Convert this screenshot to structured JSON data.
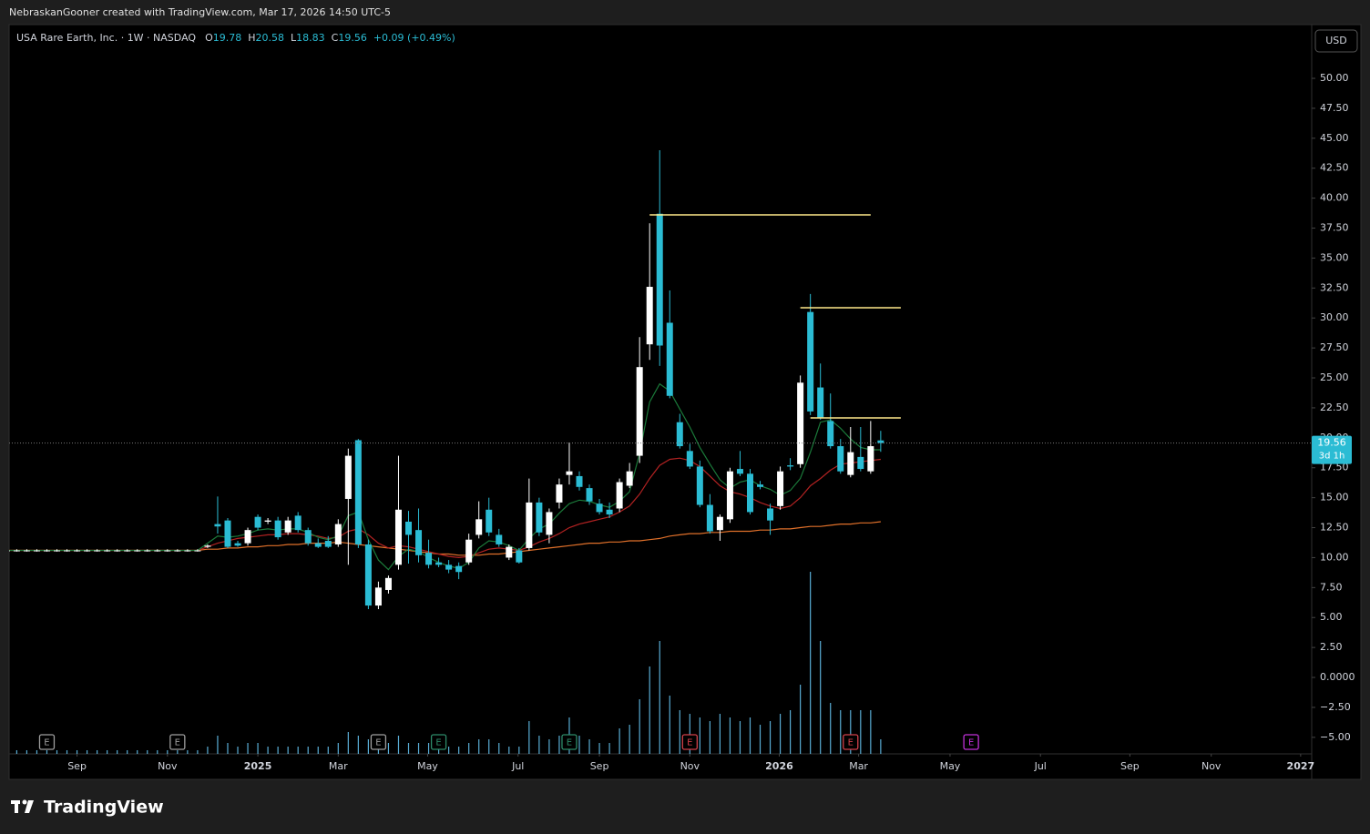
{
  "chart_data": {
    "type": "candlestick",
    "header": "NebraskanGooner created with TradingView.com, Mar 17, 2026 14:50 UTC-5",
    "title": "USA Rare Earth, Inc. · 1W · NASDAQ",
    "ohlc_labels": [
      "O",
      "H",
      "L",
      "C"
    ],
    "change": "+0.09 (+0.49%)",
    "currency": "USD",
    "countdown": "3d 1h",
    "brand": "TradingView",
    "up_color": "#ffffff",
    "down_color": "#2bbcd4",
    "volume_color": "#5aaed6",
    "open": [
      10.6,
      10.6,
      10.6,
      10.6,
      10.6,
      10.6,
      10.6,
      10.6,
      10.6,
      10.6,
      10.6,
      10.6,
      10.6,
      10.6,
      10.6,
      10.6,
      10.6,
      10.6,
      10.6,
      10.6,
      10.9,
      12.8,
      13.1,
      11.2,
      11.2,
      13.4,
      13.0,
      13.1,
      12.1,
      13.5,
      12.3,
      11.2,
      11.4,
      11.1,
      14.9,
      19.8,
      11.1,
      6.0,
      7.3,
      9.4,
      13.0,
      12.3,
      10.4,
      9.6,
      9.4,
      9.3,
      9.6,
      11.9,
      14.0,
      11.9,
      10.0,
      10.6,
      10.8,
      14.6,
      11.9,
      14.6,
      16.9,
      16.8,
      15.8,
      14.5,
      14.0,
      14.1,
      16.0,
      18.5,
      27.8,
      38.7,
      29.6,
      21.3,
      18.9,
      17.6,
      14.4,
      12.3,
      13.2,
      17.4,
      17.0,
      16.1,
      14.1,
      14.3,
      17.7,
      17.8,
      30.5,
      24.2,
      21.4,
      19.3,
      16.9,
      18.4,
      17.2,
      19.78
    ],
    "high": [
      10.7,
      10.7,
      10.7,
      10.7,
      10.7,
      10.7,
      10.7,
      10.7,
      10.7,
      10.7,
      10.7,
      10.7,
      10.7,
      10.7,
      10.7,
      10.7,
      10.7,
      10.7,
      10.7,
      10.7,
      11.1,
      15.1,
      13.3,
      11.4,
      12.5,
      13.6,
      13.3,
      13.4,
      13.4,
      13.8,
      12.5,
      11.6,
      11.8,
      13.2,
      19.1,
      19.9,
      11.5,
      8.0,
      8.5,
      18.5,
      13.9,
      14.1,
      11.5,
      10.0,
      9.8,
      9.6,
      12.0,
      14.7,
      15.0,
      12.4,
      11.1,
      10.8,
      16.6,
      15.0,
      14.1,
      16.6,
      19.6,
      17.2,
      16.1,
      14.9,
      14.6,
      16.6,
      17.9,
      28.4,
      37.9,
      44.0,
      32.3,
      22.0,
      19.5,
      18.1,
      15.3,
      13.6,
      17.5,
      18.9,
      17.4,
      16.4,
      14.5,
      17.6,
      18.3,
      25.2,
      32.0,
      26.2,
      23.7,
      19.9,
      20.9,
      20.9,
      21.4,
      20.58
    ],
    "low": [
      10.5,
      10.5,
      10.5,
      10.5,
      10.5,
      10.5,
      10.5,
      10.5,
      10.5,
      10.5,
      10.5,
      10.5,
      10.5,
      10.5,
      10.5,
      10.5,
      10.5,
      10.5,
      10.5,
      10.5,
      10.8,
      12.0,
      10.8,
      10.9,
      11.0,
      12.3,
      12.8,
      11.5,
      11.9,
      12.1,
      11.0,
      10.8,
      10.8,
      10.9,
      9.4,
      10.8,
      5.7,
      5.7,
      7.0,
      9.0,
      9.5,
      9.6,
      9.1,
      9.2,
      8.7,
      8.2,
      9.4,
      11.6,
      11.8,
      10.9,
      9.8,
      9.5,
      10.6,
      11.8,
      11.2,
      14.1,
      16.1,
      15.6,
      14.4,
      13.6,
      13.3,
      13.8,
      15.8,
      17.9,
      26.5,
      26.0,
      23.3,
      19.1,
      17.4,
      14.2,
      12.0,
      11.4,
      12.9,
      16.8,
      13.6,
      15.7,
      11.9,
      14.0,
      17.3,
      17.5,
      21.9,
      21.5,
      19.1,
      17.0,
      16.7,
      17.2,
      17.0,
      18.83
    ],
    "close": [
      10.6,
      10.6,
      10.6,
      10.6,
      10.6,
      10.6,
      10.6,
      10.6,
      10.6,
      10.6,
      10.6,
      10.6,
      10.6,
      10.6,
      10.6,
      10.6,
      10.6,
      10.6,
      10.6,
      10.6,
      11.0,
      12.6,
      10.9,
      11.0,
      12.3,
      12.5,
      13.1,
      11.7,
      13.1,
      12.3,
      11.2,
      10.9,
      10.9,
      12.8,
      18.5,
      11.1,
      6.0,
      7.5,
      8.3,
      14.0,
      11.9,
      10.2,
      9.4,
      9.4,
      9.0,
      8.8,
      11.5,
      13.2,
      12.1,
      11.1,
      10.9,
      9.6,
      14.6,
      12.1,
      13.8,
      16.1,
      17.2,
      15.9,
      14.7,
      13.8,
      13.6,
      16.3,
      17.2,
      25.9,
      32.6,
      27.7,
      23.5,
      19.3,
      17.6,
      14.4,
      12.2,
      13.4,
      17.2,
      17.0,
      13.8,
      15.9,
      13.1,
      17.2,
      17.6,
      24.6,
      22.2,
      21.7,
      19.3,
      17.2,
      18.8,
      17.4,
      19.3,
      19.56
    ],
    "volume": [
      1,
      1,
      1,
      1,
      1,
      1,
      1,
      1,
      1,
      1,
      1,
      1,
      1,
      1,
      1,
      1,
      1,
      1,
      1,
      1,
      2,
      5,
      3,
      2,
      3,
      3,
      2,
      2,
      2,
      2,
      2,
      2,
      2,
      3,
      6,
      5,
      4,
      4,
      3,
      5,
      3,
      3,
      3,
      2,
      2,
      2,
      3,
      4,
      4,
      3,
      2,
      2,
      9,
      5,
      4,
      5,
      10,
      5,
      4,
      3,
      3,
      7,
      8,
      15,
      24,
      31,
      16,
      12,
      11,
      10,
      9,
      11,
      10,
      9,
      10,
      8,
      9,
      11,
      12,
      19,
      50,
      31,
      14,
      12,
      12,
      12,
      12,
      4
    ],
    "ma": [
      {
        "color": "#e0702a",
        "values": [
          10.6,
          10.6,
          10.6,
          10.6,
          10.6,
          10.6,
          10.6,
          10.6,
          10.6,
          10.6,
          10.6,
          10.6,
          10.6,
          10.6,
          10.6,
          10.6,
          10.6,
          10.6,
          10.6,
          10.6,
          10.7,
          10.7,
          10.8,
          10.8,
          10.9,
          10.9,
          11.0,
          11.0,
          11.1,
          11.1,
          11.2,
          11.2,
          11.2,
          11.3,
          11.2,
          11.1,
          11.0,
          10.9,
          10.8,
          10.7,
          10.6,
          10.5,
          10.4,
          10.3,
          10.3,
          10.2,
          10.2,
          10.2,
          10.3,
          10.3,
          10.4,
          10.5,
          10.6,
          10.7,
          10.8,
          10.9,
          11.0,
          11.1,
          11.2,
          11.2,
          11.3,
          11.3,
          11.4,
          11.4,
          11.5,
          11.6,
          11.8,
          11.9,
          12.0,
          12.0,
          12.1,
          12.1,
          12.2,
          12.2,
          12.2,
          12.3,
          12.3,
          12.4,
          12.4,
          12.5,
          12.6,
          12.6,
          12.7,
          12.8,
          12.8,
          12.9,
          12.9,
          13.0
        ]
      },
      {
        "color": "#b22222",
        "values": [
          10.6,
          10.6,
          10.6,
          10.6,
          10.6,
          10.6,
          10.6,
          10.6,
          10.6,
          10.6,
          10.6,
          10.6,
          10.6,
          10.6,
          10.6,
          10.6,
          10.6,
          10.6,
          10.6,
          10.6,
          10.9,
          11.2,
          11.4,
          11.6,
          11.7,
          11.8,
          11.9,
          11.9,
          12.0,
          12.0,
          11.9,
          11.8,
          11.6,
          11.7,
          12.2,
          12.4,
          11.9,
          11.2,
          10.8,
          11.0,
          10.9,
          10.7,
          10.5,
          10.3,
          10.1,
          10.0,
          10.1,
          10.4,
          10.7,
          10.8,
          10.7,
          10.6,
          10.9,
          11.3,
          11.6,
          12.0,
          12.5,
          12.8,
          13.0,
          13.2,
          13.4,
          13.8,
          14.3,
          15.3,
          16.6,
          17.7,
          18.2,
          18.3,
          18.1,
          17.6,
          16.8,
          16.0,
          15.5,
          15.3,
          15.0,
          14.6,
          14.3,
          14.1,
          14.3,
          15.0,
          16.0,
          16.6,
          17.3,
          17.8,
          17.9,
          18.0,
          18.1,
          18.2
        ]
      },
      {
        "color": "#1b7a3a",
        "values": [
          10.6,
          10.6,
          10.6,
          10.6,
          10.6,
          10.6,
          10.6,
          10.6,
          10.6,
          10.6,
          10.6,
          10.6,
          10.6,
          10.6,
          10.6,
          10.6,
          10.6,
          10.6,
          10.6,
          10.6,
          11.2,
          11.8,
          11.7,
          11.8,
          12.0,
          12.3,
          12.4,
          12.3,
          12.4,
          12.4,
          12.1,
          11.7,
          11.5,
          11.8,
          13.5,
          13.8,
          11.5,
          9.8,
          9.0,
          10.1,
          10.7,
          10.5,
          10.0,
          9.6,
          9.3,
          9.1,
          9.6,
          10.8,
          11.4,
          11.3,
          11.0,
          10.6,
          11.6,
          12.4,
          12.8,
          13.7,
          14.5,
          14.8,
          14.7,
          14.4,
          14.2,
          14.7,
          15.5,
          18.7,
          23.0,
          24.5,
          23.9,
          22.4,
          20.9,
          19.2,
          17.8,
          16.5,
          15.8,
          16.3,
          16.5,
          16.0,
          15.7,
          15.2,
          15.6,
          16.6,
          18.8,
          21.3,
          21.5,
          20.8,
          19.9,
          19.2,
          19.0,
          19.0
        ]
      }
    ],
    "levels": [
      {
        "value": 38.6,
        "x": [
          64,
          86
        ],
        "color": "#ffe98a"
      },
      {
        "value": 30.85,
        "x": [
          79,
          89
        ],
        "color": "#ffe98a"
      },
      {
        "value": 21.66,
        "x": [
          80,
          89
        ],
        "color": "#ffe98a"
      }
    ],
    "events": [
      {
        "x": 4,
        "label": "E",
        "color": "#9e9e9e"
      },
      {
        "x": 17,
        "label": "E",
        "color": "#9e9e9e"
      },
      {
        "x": 37,
        "label": "E",
        "color": "#9e9e9e"
      },
      {
        "x": 43,
        "label": "E",
        "color": "#2e8b6a"
      },
      {
        "x": 56,
        "label": "E",
        "color": "#2e8b6a"
      },
      {
        "x": 68,
        "label": "E",
        "color": "#d0404a"
      },
      {
        "x": 84,
        "label": "E",
        "color": "#d0404a"
      },
      {
        "x": 96,
        "label": "E",
        "color": "#c030d8"
      }
    ],
    "xlim": [
      0.24,
      129.9
    ],
    "xticks": [
      {
        "value": 7,
        "label": "Sep"
      },
      {
        "value": 16,
        "label": "Nov"
      },
      {
        "value": 25,
        "label": "2025"
      },
      {
        "value": 33,
        "label": "Mar"
      },
      {
        "value": 41.9,
        "label": "May"
      },
      {
        "value": 50.9,
        "label": "Jul"
      },
      {
        "value": 59,
        "label": "Sep"
      },
      {
        "value": 68,
        "label": "Nov"
      },
      {
        "value": 76.9,
        "label": "2026"
      },
      {
        "value": 84.8,
        "label": "Mar"
      },
      {
        "value": 93.9,
        "label": "May"
      },
      {
        "value": 102.9,
        "label": "Jul"
      },
      {
        "value": 111.8,
        "label": "Sep"
      },
      {
        "value": 119.9,
        "label": "Nov"
      },
      {
        "value": 128.8,
        "label": "2027"
      }
    ],
    "ylim": [
      -6.38,
      54.41
    ],
    "yticks": [
      {
        "value": 50,
        "label": "50.00"
      },
      {
        "value": 47.5,
        "label": "47.50"
      },
      {
        "value": 45,
        "label": "45.00"
      },
      {
        "value": 42.5,
        "label": "42.50"
      },
      {
        "value": 40,
        "label": "40.00"
      },
      {
        "value": 37.5,
        "label": "37.50"
      },
      {
        "value": 35,
        "label": "35.00"
      },
      {
        "value": 32.5,
        "label": "32.50"
      },
      {
        "value": 30,
        "label": "30.00"
      },
      {
        "value": 27.5,
        "label": "27.50"
      },
      {
        "value": 25,
        "label": "25.00"
      },
      {
        "value": 22.5,
        "label": "22.50"
      },
      {
        "value": 20,
        "label": "20.00"
      },
      {
        "value": 17.5,
        "label": "17.50"
      },
      {
        "value": 15,
        "label": "15.00"
      },
      {
        "value": 12.5,
        "label": "12.50"
      },
      {
        "value": 10,
        "label": "10.00"
      },
      {
        "value": 7.5,
        "label": "7.50"
      },
      {
        "value": 5,
        "label": "5.00"
      },
      {
        "value": 2.5,
        "label": "2.50"
      },
      {
        "value": 0,
        "label": "0.0000"
      },
      {
        "value": -2.5,
        "label": "−2.50"
      },
      {
        "value": -5,
        "label": "−5.00"
      }
    ],
    "grid": false
  }
}
